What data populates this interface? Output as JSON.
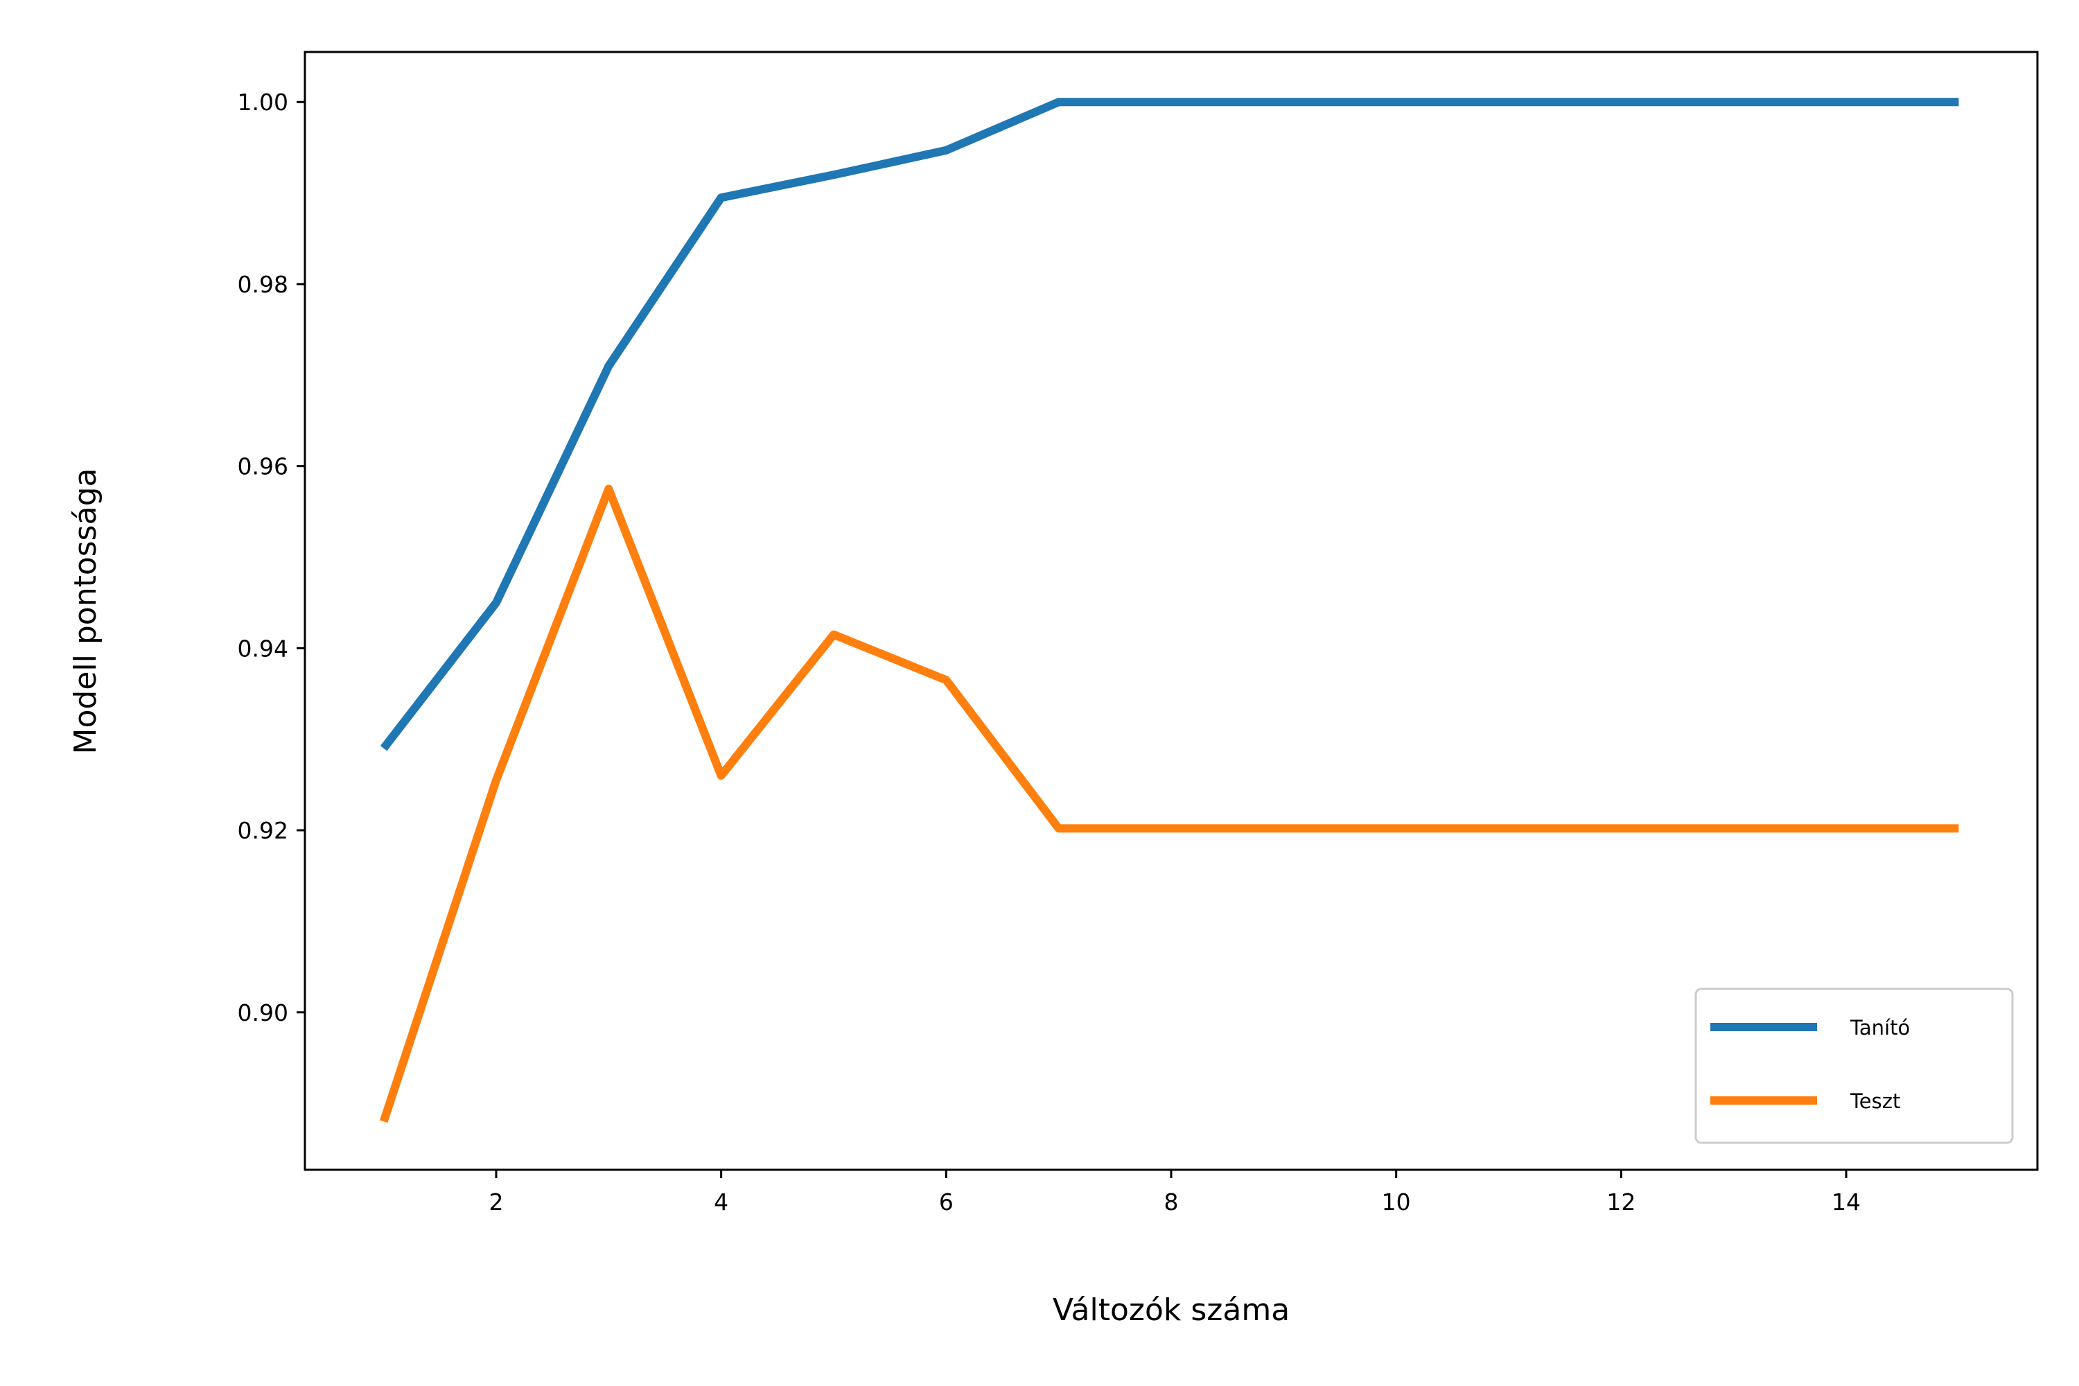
{
  "chart_data": {
    "type": "line",
    "title": "",
    "xlabel": "Változók száma",
    "ylabel": "Modell pontossága",
    "xlim": [
      0.3,
      15.7
    ],
    "ylim": [
      0.8827,
      1.0055
    ],
    "xticks": [
      2,
      4,
      6,
      8,
      10,
      12,
      14
    ],
    "yticks": [
      0.9,
      0.92,
      0.94,
      0.96,
      0.98,
      1.0
    ],
    "xtick_labels": [
      "2",
      "4",
      "6",
      "8",
      "10",
      "12",
      "14"
    ],
    "ytick_labels": [
      "0.90",
      "0.92",
      "0.94",
      "0.96",
      "0.98",
      "1.00"
    ],
    "grid": false,
    "legend_position": "lower-right",
    "x": [
      1,
      2,
      3,
      4,
      5,
      6,
      7,
      8,
      9,
      10,
      11,
      12,
      13,
      14,
      15
    ],
    "series": [
      {
        "name": "Tanító",
        "color": "#1f77b4",
        "values": [
          0.929,
          0.945,
          0.971,
          0.9895,
          0.992,
          0.9947,
          1.0,
          1.0,
          1.0,
          1.0,
          1.0,
          1.0,
          1.0,
          1.0,
          1.0
        ]
      },
      {
        "name": "Teszt",
        "color": "#ff7f0e",
        "values": [
          0.888,
          0.9255,
          0.9575,
          0.926,
          0.9415,
          0.9365,
          0.9202,
          0.9202,
          0.9202,
          0.9202,
          0.9202,
          0.9202,
          0.9202,
          0.9202,
          0.9202
        ]
      }
    ]
  }
}
